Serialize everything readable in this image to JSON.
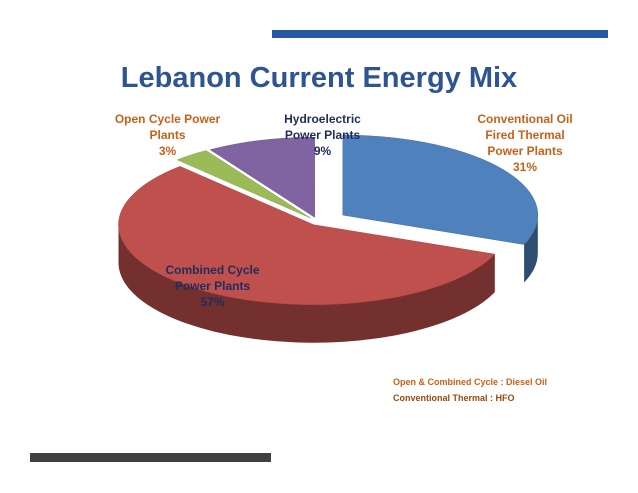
{
  "chart_data": {
    "type": "pie3d",
    "title": "Lebanon Current Energy Mix",
    "categories": [
      "Conventional Oil Fired Thermal Power Plants",
      "Combined Cycle Power Plants",
      "Open Cycle Power Plants",
      "Hydroelectric Power Plants"
    ],
    "values": [
      31,
      57,
      3,
      9
    ],
    "value_labels": [
      "31%",
      "57%",
      "3%",
      "9%"
    ],
    "colors": [
      "#4f81bd",
      "#c0504d",
      "#9bbb59",
      "#8064a2"
    ],
    "annotations": [
      "Open & Combined Cycle : Diesel  Oil",
      "Conventional Thermal : HFO"
    ]
  }
}
